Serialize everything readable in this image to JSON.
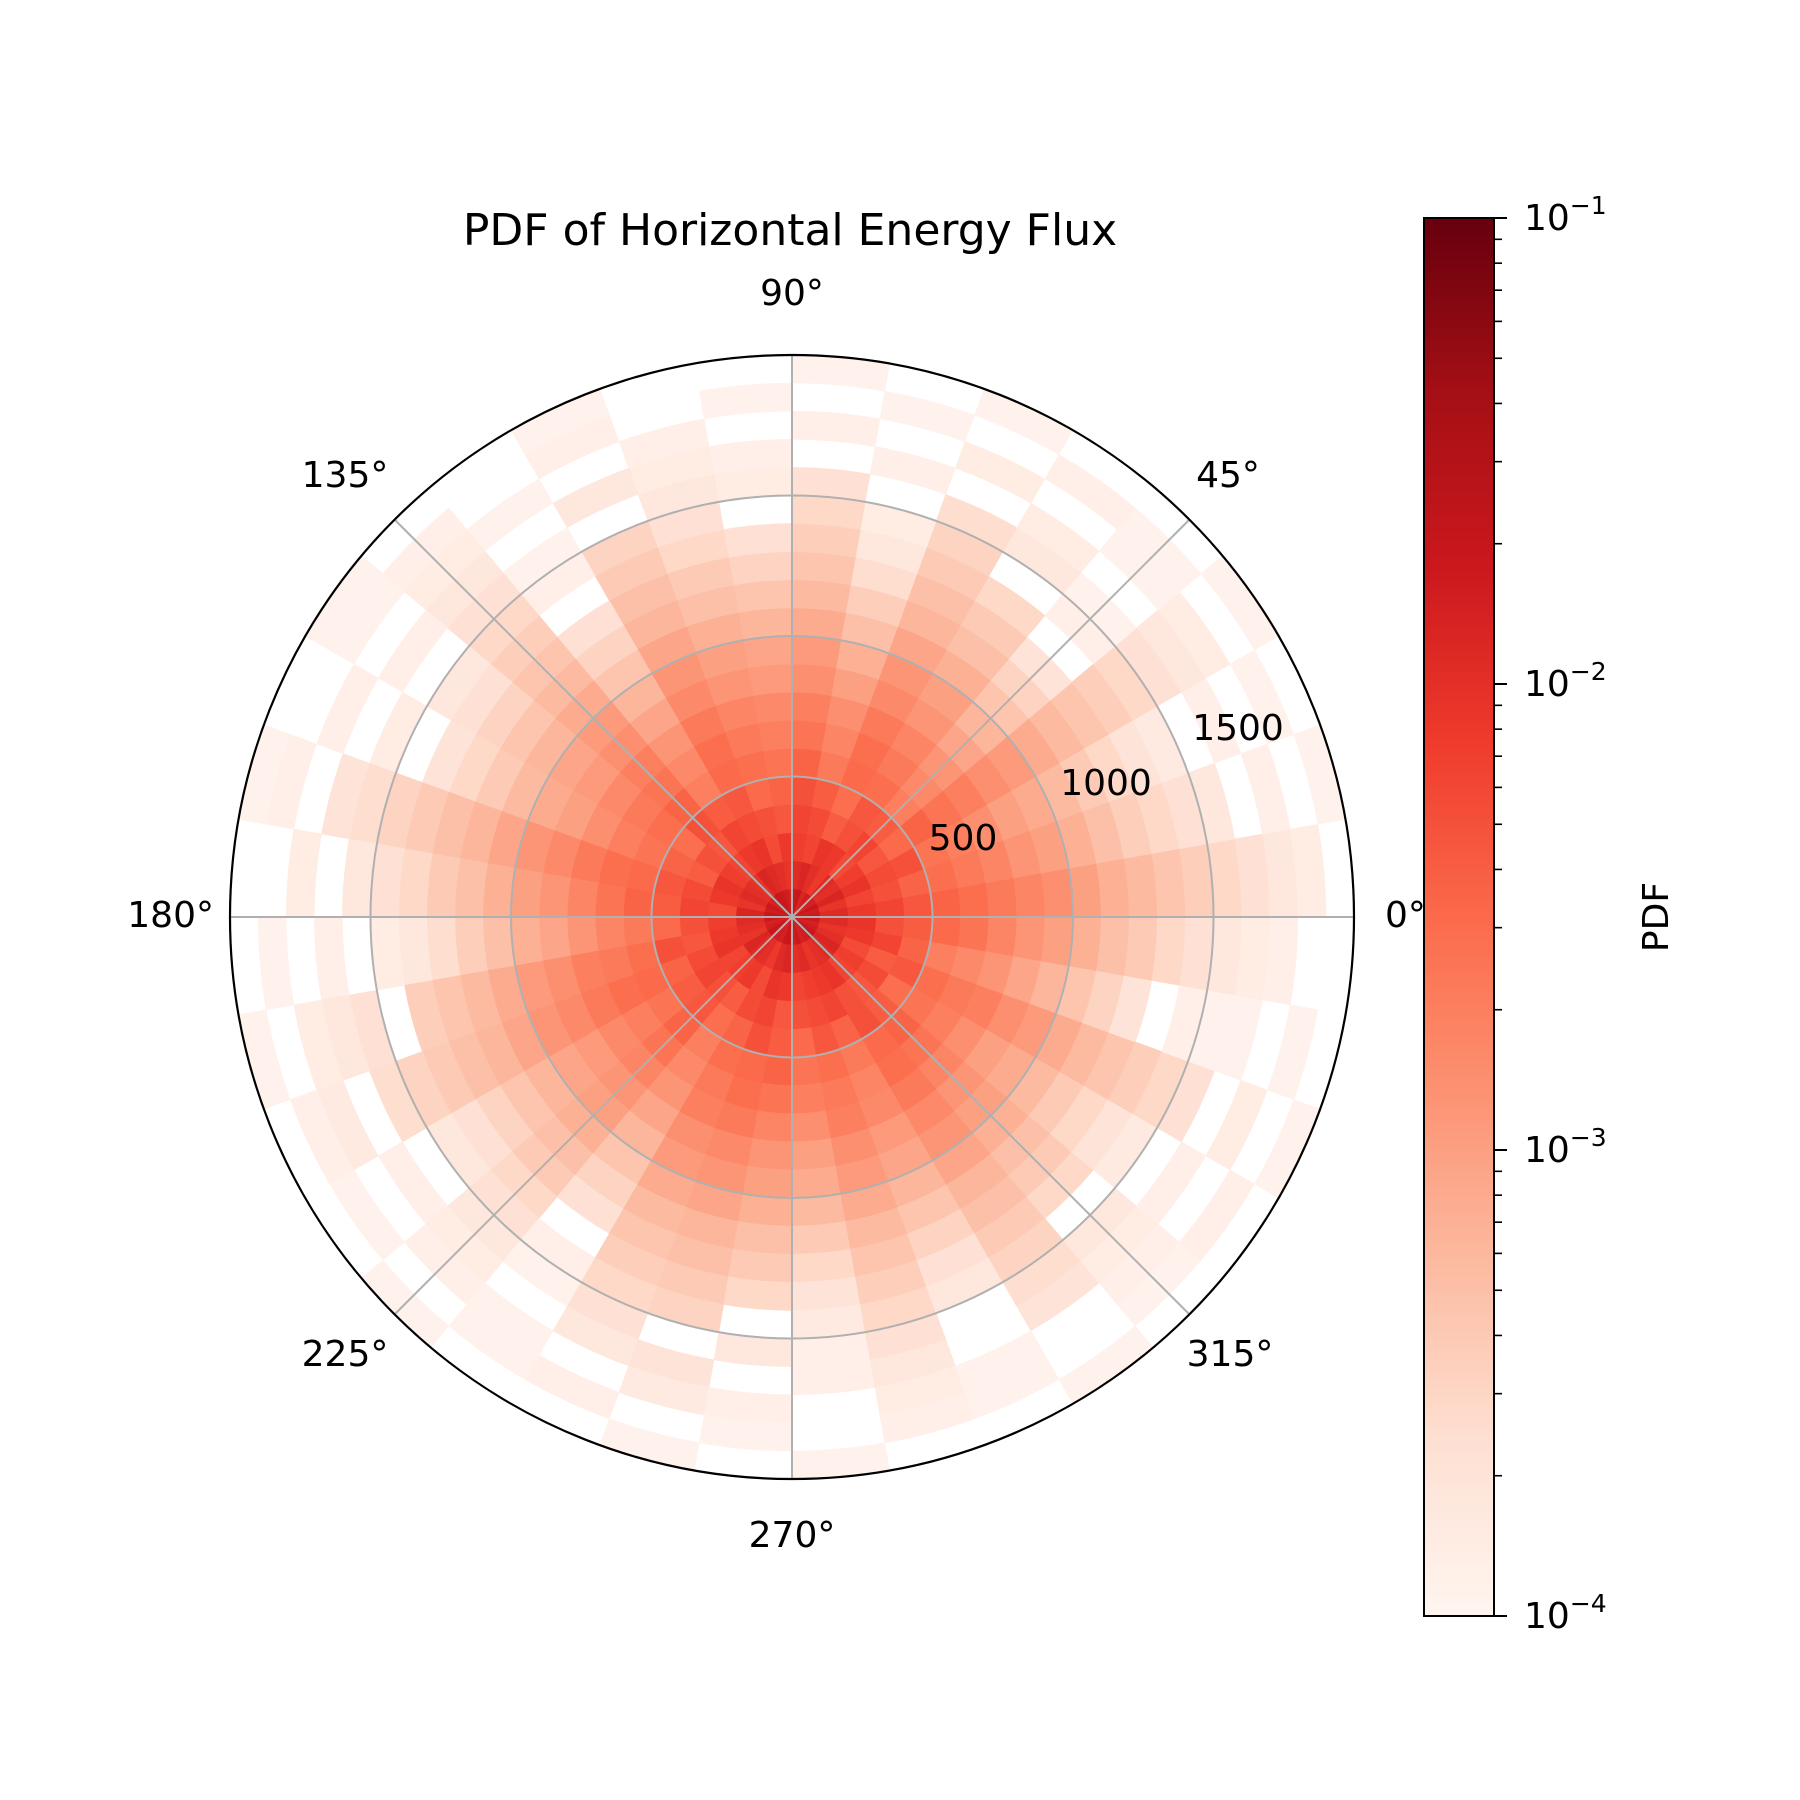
{
  "chart_data": {
    "type": "heatmap",
    "subtype": "polar-histogram",
    "title": "PDF of Horizontal Energy Flux",
    "angle_tick_labels": [
      "0°",
      "45°",
      "90°",
      "135°",
      "180°",
      "225°",
      "270°",
      "315°"
    ],
    "angle_ticks_deg": [
      0,
      45,
      90,
      135,
      180,
      225,
      270,
      315
    ],
    "radial_tick_labels": [
      "500",
      "1000",
      "1500"
    ],
    "radial_ticks": [
      500,
      1000,
      1500
    ],
    "radial_max": 2000,
    "angular_bins": 36,
    "radial_bin_width": 100,
    "radial_bins": 20,
    "colormap": "Reds",
    "color_scale": "log",
    "color_range": [
      0.0001,
      0.1
    ],
    "colorbar": {
      "label": "PDF",
      "tick_labels": [
        "10",
        "10",
        "10",
        "10"
      ],
      "tick_exponents": [
        "−1",
        "−2",
        "−3",
        "−4"
      ],
      "tick_values": [
        0.1,
        0.01,
        0.001,
        0.0001
      ]
    },
    "grid": true,
    "log10_pdf_by_radial_bin": [
      [
        -1.75,
        -1.8,
        -1.7,
        -1.85,
        -1.75,
        -1.8,
        -1.9,
        -1.7,
        -1.75,
        -1.85,
        -1.8,
        -1.75,
        -1.7,
        -1.8,
        -1.85,
        -1.75,
        -1.8,
        -1.7,
        -1.75,
        -1.85,
        -1.8,
        -1.7,
        -1.75,
        -1.8,
        -1.85,
        -1.75,
        -1.7,
        -1.8,
        -1.75,
        -1.85,
        -1.8,
        -1.75,
        -1.7,
        -1.8,
        -1.85,
        -1.75
      ],
      [
        -1.95,
        -2.05,
        -1.9,
        -2.0,
        -1.95,
        -2.1,
        -2.0,
        -1.9,
        -1.95,
        -2.05,
        -2.0,
        -1.95,
        -1.9,
        -2.05,
        -2.0,
        -1.95,
        -2.05,
        -1.9,
        -1.95,
        -2.0,
        -2.05,
        -1.9,
        -1.95,
        -2.0,
        -2.1,
        -1.95,
        -1.9,
        -2.0,
        -1.95,
        -2.05,
        -2.0,
        -1.95,
        -1.9,
        -2.0,
        -2.05,
        -1.95
      ],
      [
        -2.1,
        -2.2,
        -2.05,
        -2.15,
        -2.25,
        -2.1,
        -2.05,
        -2.2,
        -2.15,
        -2.1,
        -2.25,
        -2.05,
        -2.1,
        -2.2,
        -2.15,
        -2.05,
        -2.1,
        -2.25,
        -2.15,
        -2.1,
        -2.05,
        -2.2,
        -2.15,
        -2.1,
        -2.25,
        -2.05,
        -2.1,
        -2.2,
        -2.15,
        -2.1,
        -2.05,
        -2.2,
        -2.15,
        -2.25,
        -2.1,
        -2.05
      ],
      [
        -2.2,
        -2.3,
        -2.25,
        -2.35,
        -2.2,
        -2.3,
        -2.4,
        -2.25,
        -2.2,
        -2.35,
        -2.3,
        -2.25,
        -2.2,
        -2.35,
        -2.3,
        -2.4,
        -2.25,
        -2.2,
        -2.3,
        -2.35,
        -2.25,
        -2.2,
        -2.3,
        -2.4,
        -2.25,
        -2.2,
        -2.35,
        -2.3,
        -2.25,
        -2.2,
        -2.3,
        -2.35,
        -2.25,
        -2.4,
        -2.2,
        -2.3
      ],
      [
        -2.35,
        -2.45,
        -2.3,
        -2.5,
        -2.4,
        -2.35,
        -2.55,
        -2.4,
        -2.3,
        -2.45,
        -2.5,
        -2.35,
        -2.4,
        -2.3,
        -2.55,
        -2.45,
        -2.35,
        -2.4,
        -2.5,
        -2.3,
        -2.45,
        -2.4,
        -2.35,
        -2.55,
        -2.45,
        -2.3,
        -2.4,
        -2.5,
        -2.35,
        -2.45,
        -2.3,
        -2.4,
        -2.55,
        -2.35,
        -2.45,
        -2.4
      ],
      [
        -2.45,
        -2.55,
        -2.6,
        -2.45,
        -2.7,
        -2.55,
        -2.5,
        -2.65,
        -2.45,
        -2.6,
        -2.55,
        -2.5,
        -2.7,
        -2.45,
        -2.55,
        -2.6,
        -2.5,
        -2.45,
        -2.65,
        -2.55,
        -2.5,
        -2.6,
        -2.45,
        -2.7,
        -2.55,
        -2.5,
        -2.45,
        -2.6,
        -2.55,
        -2.65,
        -2.5,
        -2.45,
        -2.6,
        -2.55,
        -2.7,
        -2.5
      ],
      [
        -2.55,
        -2.65,
        -2.7,
        -2.6,
        -2.8,
        -2.65,
        -2.55,
        -2.75,
        -2.6,
        -2.7,
        -2.65,
        -2.55,
        -2.8,
        -2.6,
        -2.65,
        -2.7,
        -2.55,
        -2.6,
        -2.75,
        -2.65,
        -2.55,
        -2.7,
        -2.6,
        -2.8,
        -2.65,
        -2.55,
        -2.6,
        -2.7,
        -2.65,
        -2.75,
        -2.55,
        -2.6,
        -2.7,
        -2.65,
        -2.8,
        -2.6
      ],
      [
        -2.65,
        -2.75,
        -2.85,
        -2.7,
        -2.9,
        -2.75,
        -2.65,
        -2.85,
        -2.7,
        -2.8,
        -2.75,
        -2.65,
        -2.9,
        -2.7,
        -2.8,
        -2.85,
        -2.65,
        -2.75,
        -2.9,
        -2.7,
        -2.65,
        -2.8,
        -2.75,
        -2.9,
        -2.7,
        -2.65,
        -2.75,
        -2.85,
        -2.7,
        -2.8,
        -2.65,
        -2.75,
        -2.85,
        -2.7,
        -2.9,
        -2.75
      ],
      [
        -2.75,
        -2.9,
        -3.0,
        -2.85,
        -3.05,
        -2.9,
        -2.8,
        -3.0,
        -2.85,
        -2.95,
        -2.9,
        -2.8,
        -3.05,
        -2.85,
        -2.95,
        -3.0,
        -2.8,
        -2.9,
        -3.05,
        -2.85,
        -2.8,
        -2.95,
        -2.9,
        -3.05,
        -2.85,
        -2.8,
        -2.9,
        -3.0,
        -2.85,
        -2.95,
        -2.8,
        -2.9,
        -3.0,
        -2.85,
        -3.05,
        -2.9
      ],
      [
        -2.85,
        -3.0,
        -3.1,
        -2.95,
        -3.2,
        -3.0,
        -2.9,
        -3.15,
        -2.95,
        -3.05,
        -3.0,
        -2.9,
        -3.2,
        -2.95,
        -3.05,
        -3.1,
        -2.9,
        -3.0,
        -3.15,
        -2.95,
        -2.9,
        -3.05,
        -3.0,
        -3.2,
        -2.95,
        -2.9,
        -3.0,
        -3.1,
        -2.95,
        -3.05,
        -2.9,
        -3.0,
        -3.1,
        -2.95,
        -3.2,
        -3.0
      ],
      [
        -3.0,
        -3.15,
        -3.25,
        -3.1,
        -3.35,
        -3.15,
        -3.05,
        -3.3,
        -3.1,
        -3.2,
        -3.15,
        -3.05,
        -3.35,
        -3.1,
        -3.2,
        -3.25,
        -3.05,
        -3.15,
        -3.3,
        -3.1,
        -3.05,
        -3.2,
        -3.15,
        -3.35,
        -3.1,
        -3.05,
        -3.15,
        -3.25,
        -3.1,
        -3.2,
        -3.05,
        -3.15,
        -3.25,
        -3.1,
        -3.35,
        -3.15
      ],
      [
        -3.15,
        -3.3,
        -3.4,
        -3.25,
        -3.5,
        -3.3,
        -3.2,
        -3.45,
        -3.25,
        -3.35,
        -3.3,
        -3.2,
        -3.5,
        -3.25,
        -3.35,
        -3.4,
        -3.2,
        -3.3,
        -3.45,
        -3.25,
        -3.2,
        -3.35,
        -3.3,
        -3.5,
        -3.25,
        -3.2,
        -3.3,
        -3.4,
        -3.25,
        -3.35,
        -3.2,
        -3.3,
        -3.4,
        -3.25,
        -3.5,
        -3.3
      ],
      [
        -3.25,
        -3.45,
        -3.55,
        -3.35,
        -3.7,
        -3.4,
        -3.3,
        -3.6,
        -3.35,
        -3.5,
        -3.4,
        -3.3,
        -3.65,
        -3.35,
        -3.5,
        -3.55,
        -3.3,
        -3.4,
        -3.6,
        -3.35,
        -3.3,
        -3.5,
        -3.4,
        -3.65,
        -3.35,
        -3.3,
        -3.4,
        -3.55,
        -3.35,
        -3.5,
        -3.3,
        -3.4,
        -3.55,
        -3.35,
        -3.7,
        -3.4
      ],
      [
        -3.35,
        -3.55,
        -3.7,
        -3.45,
        null,
        -3.55,
        -3.4,
        -3.75,
        -3.45,
        -3.65,
        -3.55,
        -3.4,
        null,
        -3.45,
        -3.65,
        -3.7,
        -3.4,
        -3.55,
        -3.75,
        -3.45,
        -3.4,
        -3.65,
        -3.55,
        null,
        -3.45,
        -3.4,
        -3.55,
        -3.7,
        -3.45,
        -3.65,
        -3.4,
        -3.55,
        -3.7,
        -3.45,
        null,
        -3.55
      ],
      [
        -3.45,
        -3.65,
        -3.8,
        -3.55,
        -3.9,
        null,
        -3.5,
        -3.85,
        -3.55,
        null,
        -3.65,
        -3.5,
        -3.9,
        -3.55,
        -3.75,
        null,
        -3.5,
        -3.65,
        -3.85,
        null,
        -3.5,
        -3.75,
        -3.65,
        -3.9,
        -3.55,
        -3.5,
        null,
        -3.8,
        -3.55,
        -3.75,
        -3.5,
        null,
        -3.8,
        -3.55,
        -3.9,
        -3.65
      ],
      [
        -3.55,
        -3.75,
        null,
        -3.65,
        -3.95,
        -3.75,
        -3.6,
        null,
        -3.65,
        -3.85,
        -3.75,
        null,
        -3.95,
        -3.65,
        null,
        -3.85,
        -3.6,
        -3.75,
        null,
        -3.65,
        -3.6,
        null,
        -3.75,
        -3.95,
        -3.65,
        null,
        -3.75,
        -3.9,
        -3.65,
        null,
        -3.6,
        -3.75,
        null,
        -3.65,
        -3.95,
        -3.75
      ],
      [
        -3.65,
        null,
        -3.9,
        -3.75,
        null,
        -3.85,
        null,
        -3.9,
        null,
        -3.9,
        -3.85,
        -3.75,
        null,
        -3.75,
        -3.9,
        null,
        -3.7,
        null,
        -3.9,
        -3.75,
        null,
        -3.9,
        -3.85,
        null,
        -3.75,
        -3.7,
        null,
        -3.9,
        -3.75,
        null,
        -3.7,
        -3.85,
        -3.9,
        null,
        -3.95,
        -3.85
      ],
      [
        -3.75,
        -3.9,
        null,
        -3.85,
        -3.95,
        null,
        -3.85,
        null,
        -3.9,
        null,
        -3.9,
        null,
        -3.95,
        -3.85,
        null,
        -3.9,
        null,
        -3.85,
        null,
        -3.85,
        -3.8,
        null,
        -3.9,
        -3.95,
        null,
        -3.8,
        -3.9,
        null,
        -3.85,
        -3.95,
        null,
        -3.9,
        null,
        -3.85,
        null,
        -3.9
      ],
      [
        -3.85,
        null,
        -3.95,
        null,
        -3.95,
        -3.9,
        null,
        -3.95,
        null,
        -3.95,
        null,
        -3.9,
        null,
        -3.9,
        -3.95,
        null,
        -3.9,
        null,
        -3.95,
        null,
        -3.9,
        -3.95,
        null,
        -3.95,
        -3.9,
        null,
        -3.95,
        null,
        -3.9,
        -3.95,
        null,
        -3.95,
        -3.9,
        null,
        -3.95,
        null
      ],
      [
        null,
        -3.95,
        null,
        -3.95,
        null,
        null,
        -3.95,
        null,
        -3.95,
        null,
        null,
        -3.95,
        null,
        null,
        -3.95,
        null,
        -3.95,
        null,
        null,
        -3.95,
        null,
        null,
        -3.95,
        null,
        null,
        -3.95,
        null,
        -3.95,
        null,
        null,
        -3.95,
        null,
        null,
        -3.95,
        null,
        null
      ]
    ]
  }
}
